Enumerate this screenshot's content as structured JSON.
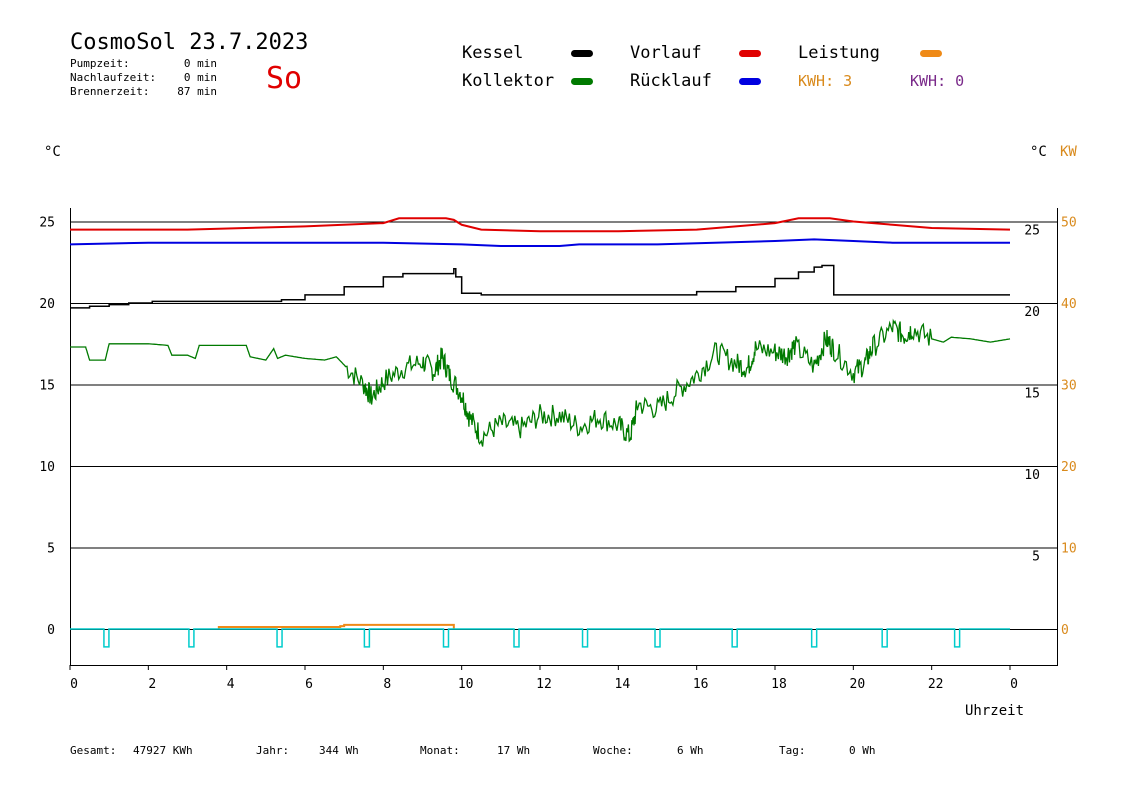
{
  "header": {
    "title": "CosmoSol 23.7.2023",
    "day": "So",
    "day_color": "#e00000",
    "stats": [
      {
        "label": "Pumpzeit:",
        "value": "0 min"
      },
      {
        "label": "Nachlaufzeit:",
        "value": "0 min"
      },
      {
        "label": "Brennerzeit:",
        "value": "87 min"
      }
    ]
  },
  "legend": {
    "items": [
      {
        "label": "Kessel",
        "color": "#000000"
      },
      {
        "label": "Kollektor",
        "color": "#007a00"
      },
      {
        "label": "Vorlauf",
        "color": "#e00000"
      },
      {
        "label": "Rücklauf",
        "color": "#0000e0"
      },
      {
        "label": "Leistung",
        "color": "#ef8a17"
      }
    ],
    "kwh": [
      {
        "text": "KWH: 3",
        "color": "#d98a1c"
      },
      {
        "text": "KWH: 0",
        "color": "#7a2a8a"
      }
    ]
  },
  "footer": {
    "items": [
      {
        "label": "Gesamt:",
        "value": "47927 KWh"
      },
      {
        "label": "Jahr:",
        "value": "344 Wh"
      },
      {
        "label": "Monat:",
        "value": "17 Wh"
      },
      {
        "label": "Woche:",
        "value": "6 Wh"
      },
      {
        "label": "Tag:",
        "value": "0 Wh"
      }
    ]
  },
  "chart_data": {
    "type": "line",
    "y_left_unit": "°C",
    "y_right_unit_1": "°C",
    "y_right_unit_2": "KW",
    "xlabel": "Uhrzeit",
    "x_ticks": [
      "0",
      "2",
      "4",
      "6",
      "8",
      "10",
      "12",
      "14",
      "16",
      "18",
      "20",
      "22",
      "0"
    ],
    "y_left_ticks": [
      0,
      5,
      10,
      15,
      20,
      25
    ],
    "y_right_ticks": [
      5,
      10,
      15,
      20,
      25
    ],
    "y_right_kw_ticks": [
      0,
      10,
      20,
      30,
      40,
      50
    ],
    "ylim": [
      -2,
      26
    ],
    "xlim": [
      0,
      24
    ],
    "grid": true,
    "colors": {
      "kw_axis": "#d98a1c",
      "pump": "#00cccc"
    },
    "series": [
      {
        "name": "Vorlauf",
        "color": "#e00000",
        "x": [
          0,
          3,
          6,
          8,
          8.4,
          9.6,
          9.8,
          10,
          10.5,
          12,
          14,
          16,
          18,
          18.6,
          19.4,
          20,
          21,
          22,
          24
        ],
        "y": [
          24.5,
          24.5,
          24.7,
          24.9,
          25.2,
          25.2,
          25.1,
          24.8,
          24.5,
          24.4,
          24.4,
          24.5,
          24.9,
          25.2,
          25.2,
          25.0,
          24.8,
          24.6,
          24.5
        ]
      },
      {
        "name": "Rücklauf",
        "color": "#0000e0",
        "x": [
          0,
          2,
          4,
          8,
          10,
          11,
          12.5,
          13,
          15,
          18,
          19,
          20,
          21,
          24
        ],
        "y": [
          23.6,
          23.7,
          23.7,
          23.7,
          23.6,
          23.5,
          23.5,
          23.6,
          23.6,
          23.8,
          23.9,
          23.8,
          23.7,
          23.7
        ]
      },
      {
        "name": "Kessel",
        "color": "#000000",
        "x": [
          0,
          0.5,
          1,
          1.5,
          2,
          2.1,
          5.2,
          5.4,
          6,
          7,
          8,
          8.5,
          9,
          9.6,
          9.75,
          9.8,
          9.85,
          10,
          10.5,
          12,
          14,
          15.2,
          16,
          17,
          18,
          18.6,
          19,
          19.2,
          19.5,
          20,
          22,
          24
        ],
        "y": [
          19.7,
          19.8,
          19.9,
          20,
          20,
          20.1,
          20.1,
          20.2,
          20.5,
          21,
          21.6,
          21.8,
          21.8,
          21.8,
          21.8,
          22.1,
          21.6,
          20.6,
          20.5,
          20.5,
          20.5,
          20.5,
          20.7,
          21,
          21.5,
          21.9,
          22.2,
          22.3,
          20.5,
          20.5,
          20.5,
          20.5
        ]
      },
      {
        "name": "Kollektor",
        "color": "#007a00",
        "x": [
          0,
          0.4,
          0.5,
          0.9,
          1,
          2,
          2.5,
          2.6,
          3,
          3.2,
          3.3,
          4,
          4.5,
          4.6,
          5,
          5.2,
          5.3,
          5.5,
          6,
          6.5,
          6.8,
          7,
          7.5,
          7.7,
          8,
          8.5,
          9,
          9.3,
          9.5,
          9.7,
          10,
          10.2,
          10.5,
          11,
          11.5,
          12,
          12.5,
          13,
          13.5,
          14,
          14.3,
          14.5,
          15,
          15.5,
          16,
          16.5,
          17,
          17.3,
          17.5,
          18,
          18.3,
          18.5,
          19,
          19.3,
          19.5,
          20,
          20.3,
          20.5,
          21,
          21.3,
          21.5,
          22,
          22.3,
          22.5,
          23,
          23.5,
          24
        ],
        "y": [
          17.3,
          17.3,
          16.5,
          16.5,
          17.5,
          17.5,
          17.4,
          16.8,
          16.8,
          16.6,
          17.4,
          17.4,
          17.4,
          16.7,
          16.5,
          17.2,
          16.6,
          16.8,
          16.6,
          16.5,
          16.7,
          16.2,
          15.0,
          14.2,
          15.2,
          16.0,
          16.4,
          15.8,
          16.7,
          15.5,
          14.4,
          13.0,
          11.8,
          12.6,
          12.3,
          13.1,
          13.1,
          12.4,
          13.0,
          12.5,
          11.8,
          13.8,
          13.5,
          14.6,
          15.6,
          17.0,
          16.3,
          16.0,
          17.2,
          17.0,
          16.8,
          17.4,
          16.1,
          17.8,
          17.2,
          15.7,
          16.3,
          17.3,
          18.5,
          18.0,
          18.4,
          17.8,
          17.6,
          17.9,
          17.8,
          17.6,
          17.8
        ]
      },
      {
        "name": "Leistung",
        "color": "#ef8a17",
        "x": [
          3.8,
          3.8,
          6.9,
          6.9,
          7.0,
          7.0,
          9.8,
          9.8
        ],
        "y": [
          0,
          0.12,
          0.12,
          0.18,
          0.18,
          0.25,
          0.25,
          0
        ]
      },
      {
        "name": "Pumpe",
        "color": "#00cccc",
        "pulses": [
          0.93,
          3.1,
          5.35,
          7.58,
          9.6,
          11.4,
          13.15,
          15.0,
          16.97,
          19.0,
          20.8,
          22.65
        ],
        "baseline": 0,
        "depth": -1.1
      }
    ]
  }
}
